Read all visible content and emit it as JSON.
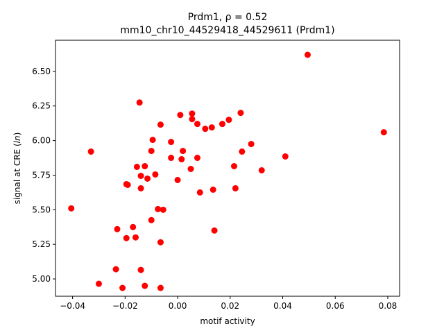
{
  "chart_data": {
    "type": "scatter",
    "title_line1": "Prdm1, ρ = 0.52",
    "title_line2": "mm10_chr10_44529418_44529611 (Prdm1)",
    "xlabel": "motif activity",
    "ylabel_prefix": "signal at CRE (",
    "ylabel_italic": "ln",
    "ylabel_suffix": ")",
    "xlim": [
      -0.0465,
      0.0845
    ],
    "ylim": [
      4.875,
      6.725
    ],
    "xticks": [
      {
        "value": -0.04,
        "label": "−0.04"
      },
      {
        "value": -0.02,
        "label": "−0.02"
      },
      {
        "value": 0.0,
        "label": "0.00"
      },
      {
        "value": 0.02,
        "label": "0.02"
      },
      {
        "value": 0.04,
        "label": "0.04"
      },
      {
        "value": 0.06,
        "label": "0.06"
      },
      {
        "value": 0.08,
        "label": "0.08"
      }
    ],
    "yticks": [
      {
        "value": 5.0,
        "label": "5.00"
      },
      {
        "value": 5.25,
        "label": "5.25"
      },
      {
        "value": 5.5,
        "label": "5.50"
      },
      {
        "value": 5.75,
        "label": "5.75"
      },
      {
        "value": 6.0,
        "label": "6.00"
      },
      {
        "value": 6.25,
        "label": "6.25"
      },
      {
        "value": 6.5,
        "label": "6.50"
      }
    ],
    "grid": false,
    "marker_color": "#ff0000",
    "points": [
      [
        0.0495,
        6.62
      ],
      [
        0.0785,
        6.06
      ],
      [
        0.041,
        5.885
      ],
      [
        0.032,
        5.785
      ],
      [
        0.028,
        5.975
      ],
      [
        0.0245,
        5.92
      ],
      [
        0.024,
        6.2
      ],
      [
        0.0195,
        6.15
      ],
      [
        0.017,
        6.12
      ],
      [
        0.013,
        6.095
      ],
      [
        0.0105,
        6.085
      ],
      [
        0.0075,
        6.12
      ],
      [
        0.0055,
        6.195
      ],
      [
        0.0055,
        6.155
      ],
      [
        0.001,
        6.185
      ],
      [
        0.0215,
        5.815
      ],
      [
        0.022,
        5.655
      ],
      [
        0.0135,
        5.645
      ],
      [
        0.0085,
        5.625
      ],
      [
        0.0075,
        5.875
      ],
      [
        0.005,
        5.795
      ],
      [
        0.002,
        5.925
      ],
      [
        0.0015,
        5.865
      ],
      [
        0.0,
        5.715
      ],
      [
        -0.0025,
        5.875
      ],
      [
        -0.0025,
        5.99
      ],
      [
        -0.0065,
        6.115
      ],
      [
        -0.0095,
        6.005
      ],
      [
        -0.01,
        5.925
      ],
      [
        -0.0145,
        6.275
      ],
      [
        -0.0125,
        5.815
      ],
      [
        -0.0155,
        5.81
      ],
      [
        -0.0085,
        5.755
      ],
      [
        -0.014,
        5.745
      ],
      [
        -0.0115,
        5.725
      ],
      [
        -0.0195,
        5.685
      ],
      [
        -0.019,
        5.68
      ],
      [
        -0.014,
        5.655
      ],
      [
        -0.033,
        5.92
      ],
      [
        -0.0405,
        5.51
      ],
      [
        -0.0075,
        5.505
      ],
      [
        -0.0055,
        5.5
      ],
      [
        -0.01,
        5.425
      ],
      [
        -0.017,
        5.375
      ],
      [
        -0.023,
        5.36
      ],
      [
        -0.0195,
        5.295
      ],
      [
        -0.016,
        5.3
      ],
      [
        -0.0065,
        5.265
      ],
      [
        0.014,
        5.35
      ],
      [
        -0.0235,
        5.07
      ],
      [
        -0.014,
        5.065
      ],
      [
        -0.03,
        4.965
      ],
      [
        -0.021,
        4.935
      ],
      [
        -0.0125,
        4.95
      ],
      [
        -0.0065,
        4.935
      ]
    ]
  }
}
